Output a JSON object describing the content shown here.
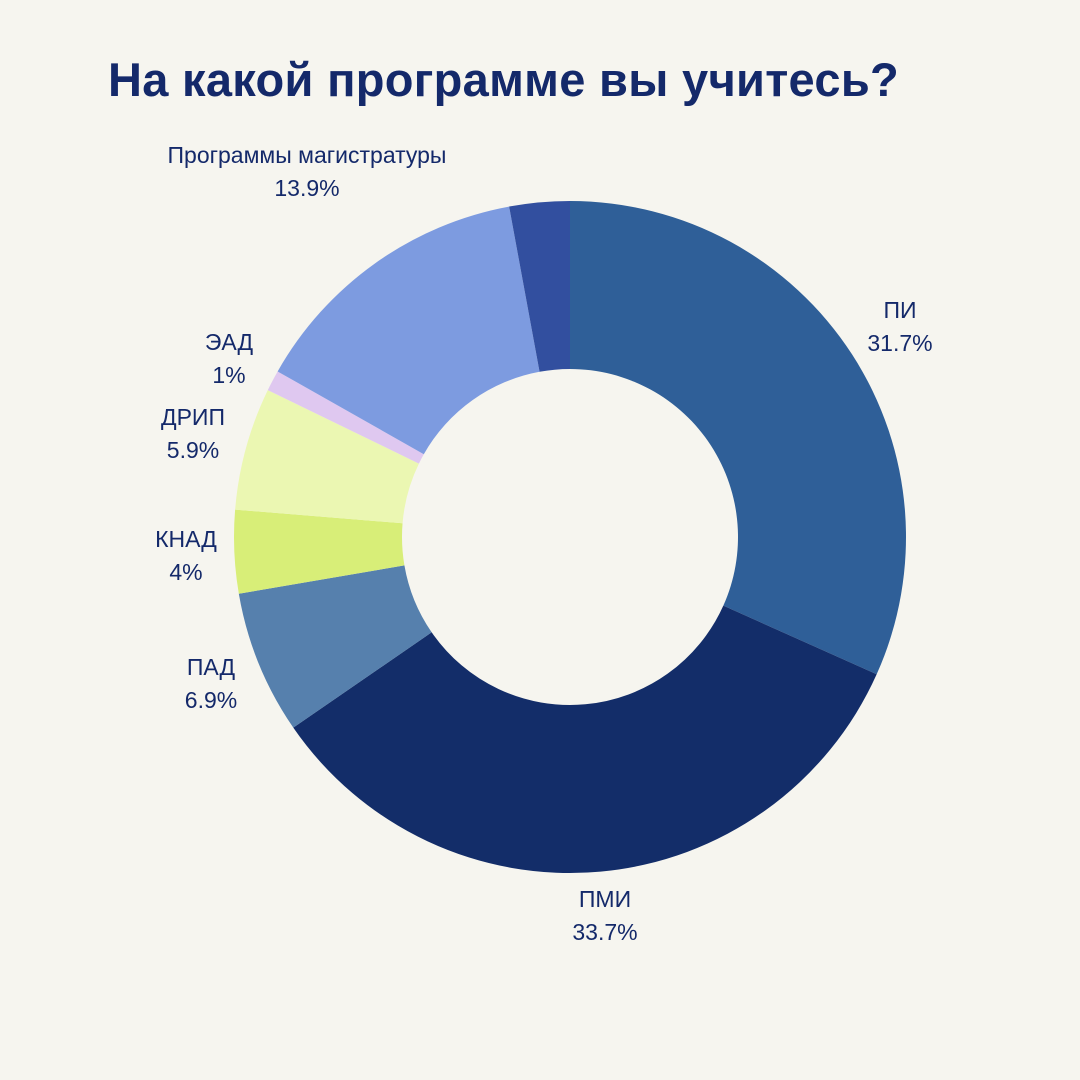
{
  "title": "На какой программе вы учитесь?",
  "chart_data": {
    "type": "pie",
    "donut": true,
    "title": "На какой программе вы учитесь?",
    "unit": "%",
    "slices": [
      {
        "label": "ПИ",
        "pct_label": "31.7%",
        "value": 31.7,
        "color": "#2f5f98"
      },
      {
        "label": "ПМИ",
        "pct_label": "33.7%",
        "value": 33.7,
        "color": "#132d69"
      },
      {
        "label": "ПАД",
        "pct_label": "6.9%",
        "value": 6.9,
        "color": "#5680ad"
      },
      {
        "label": "КНАД",
        "pct_label": "4%",
        "value": 4.0,
        "color": "#d8ee78"
      },
      {
        "label": "ДРИП",
        "pct_label": "5.9%",
        "value": 5.9,
        "color": "#ebf7b2"
      },
      {
        "label": "ЭАД",
        "pct_label": "1%",
        "value": 1.0,
        "color": "#dfc8f0"
      },
      {
        "label": "Программы магистратуры",
        "pct_label": "13.9%",
        "value": 13.9,
        "color": "#7d9be0"
      },
      {
        "label": "",
        "pct_label": "",
        "value": 2.9,
        "color": "#324f9f"
      }
    ]
  }
}
